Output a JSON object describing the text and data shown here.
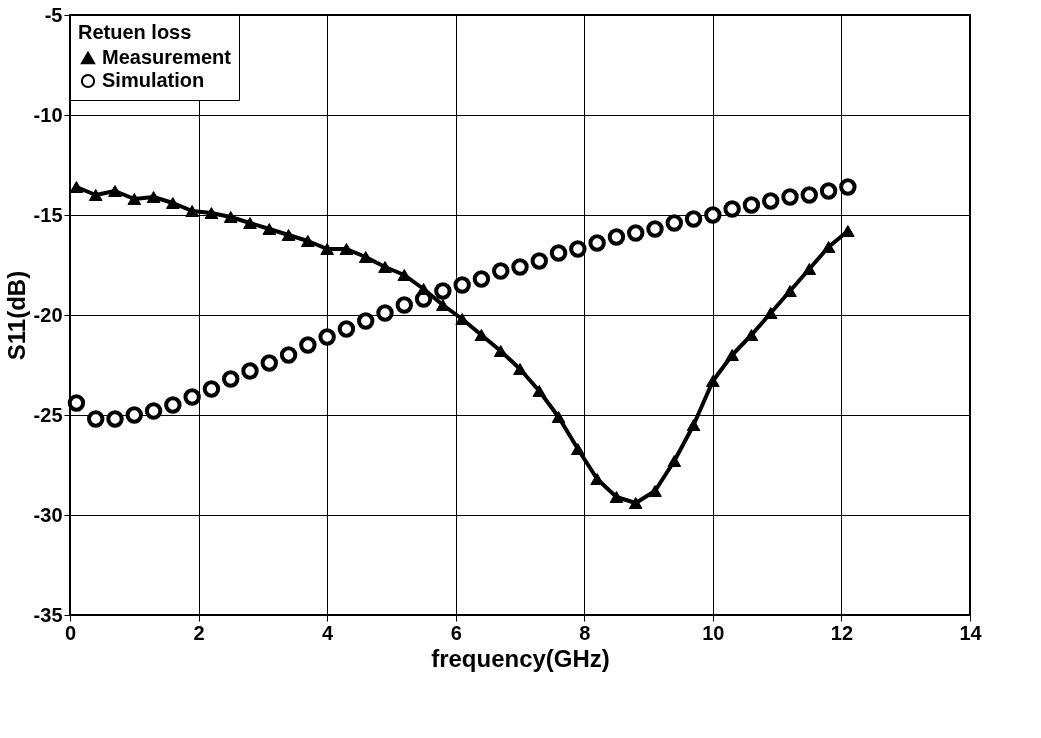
{
  "chart_data": {
    "type": "line",
    "xlabel": "frequency(GHz)",
    "ylabel": "S11(dB)",
    "legend_title": "Retuen loss",
    "x": [
      0.1,
      0.4,
      0.7,
      1.0,
      1.3,
      1.6,
      1.9,
      2.2,
      2.5,
      2.8,
      3.1,
      3.4,
      3.7,
      4.0,
      4.3,
      4.6,
      4.9,
      5.2,
      5.5,
      5.8,
      6.1,
      6.4,
      6.7,
      7.0,
      7.3,
      7.6,
      7.9,
      8.2,
      8.5,
      8.8,
      9.1,
      9.4,
      9.7,
      10.0,
      10.3,
      10.6,
      10.9,
      11.2,
      11.5,
      11.8,
      12.1
    ],
    "series": [
      {
        "name": "Measurement",
        "marker": "triangle",
        "color": "#000000",
        "values": [
          -13.6,
          -14.0,
          -13.8,
          -14.2,
          -14.1,
          -14.4,
          -14.8,
          -14.9,
          -15.1,
          -15.4,
          -15.7,
          -16.0,
          -16.3,
          -16.7,
          -16.7,
          -17.1,
          -17.6,
          -18.0,
          -18.7,
          -19.5,
          -20.2,
          -21.0,
          -21.8,
          -22.7,
          -23.8,
          -25.1,
          -26.7,
          -28.2,
          -29.1,
          -29.4,
          -28.8,
          -27.3,
          -25.5,
          -23.3,
          -22.0,
          -21.0,
          -19.9,
          -18.8,
          -17.7,
          -16.6,
          -15.8
        ]
      },
      {
        "name": "Simulation",
        "type": "scatter",
        "marker": "circle",
        "color": "#000000",
        "values": [
          -24.4,
          -25.2,
          -25.2,
          -25.0,
          -24.8,
          -24.5,
          -24.1,
          -23.7,
          -23.2,
          -22.8,
          -22.4,
          -22.0,
          -21.5,
          -21.1,
          -20.7,
          -20.3,
          -19.9,
          -19.5,
          -19.2,
          -18.8,
          -18.5,
          -18.2,
          -17.8,
          -17.6,
          -17.3,
          -16.9,
          -16.7,
          -16.4,
          -16.1,
          -15.9,
          -15.7,
          -15.4,
          -15.2,
          -15.0,
          -14.7,
          -14.5,
          -14.3,
          -14.1,
          -14.0,
          -13.8,
          -13.6
        ]
      }
    ],
    "xlim": [
      0,
      14
    ],
    "xticks": [
      0,
      2,
      4,
      6,
      8,
      10,
      12,
      14
    ],
    "ylim": [
      -35,
      -5
    ],
    "yticks": [
      -35,
      -30,
      -25,
      -20,
      -15,
      -10,
      -5
    ],
    "grid": true,
    "legend": "top left"
  }
}
